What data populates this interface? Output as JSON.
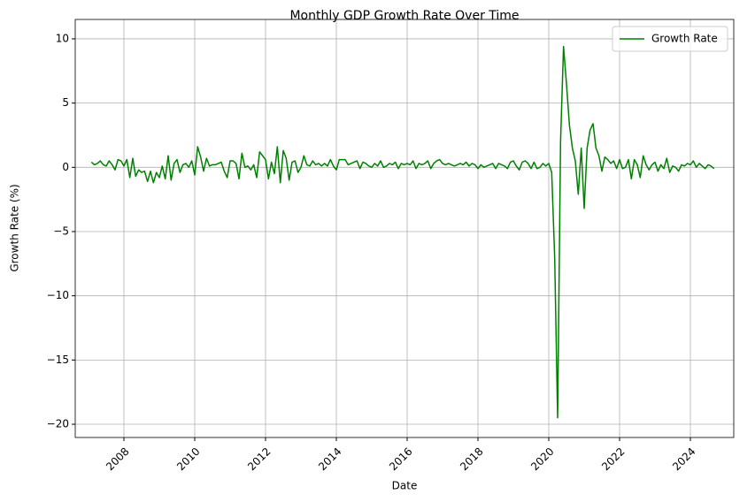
{
  "chart_data": {
    "type": "line",
    "title": "Monthly GDP Growth Rate Over Time",
    "x_label": "Date",
    "y_label": "Growth Rate (%)",
    "x": [
      2007.083,
      2007.167,
      2007.25,
      2007.333,
      2007.417,
      2007.5,
      2007.583,
      2007.667,
      2007.75,
      2007.833,
      2007.917,
      2008.0,
      2008.083,
      2008.167,
      2008.25,
      2008.333,
      2008.417,
      2008.5,
      2008.583,
      2008.667,
      2008.75,
      2008.833,
      2008.917,
      2009.0,
      2009.083,
      2009.167,
      2009.25,
      2009.333,
      2009.417,
      2009.5,
      2009.583,
      2009.667,
      2009.75,
      2009.833,
      2009.917,
      2010.0,
      2010.083,
      2010.167,
      2010.25,
      2010.333,
      2010.417,
      2010.5,
      2010.583,
      2010.667,
      2010.75,
      2010.833,
      2010.917,
      2011.0,
      2011.083,
      2011.167,
      2011.25,
      2011.333,
      2011.417,
      2011.5,
      2011.583,
      2011.667,
      2011.75,
      2011.833,
      2011.917,
      2012.0,
      2012.083,
      2012.167,
      2012.25,
      2012.333,
      2012.417,
      2012.5,
      2012.583,
      2012.667,
      2012.75,
      2012.833,
      2012.917,
      2013.0,
      2013.083,
      2013.167,
      2013.25,
      2013.333,
      2013.417,
      2013.5,
      2013.583,
      2013.667,
      2013.75,
      2013.833,
      2013.917,
      2014.0,
      2014.083,
      2014.167,
      2014.25,
      2014.333,
      2014.417,
      2014.5,
      2014.583,
      2014.667,
      2014.75,
      2014.833,
      2014.917,
      2015.0,
      2015.083,
      2015.167,
      2015.25,
      2015.333,
      2015.417,
      2015.5,
      2015.583,
      2015.667,
      2015.75,
      2015.833,
      2015.917,
      2016.0,
      2016.083,
      2016.167,
      2016.25,
      2016.333,
      2016.417,
      2016.5,
      2016.583,
      2016.667,
      2016.75,
      2016.833,
      2016.917,
      2017.0,
      2017.083,
      2017.167,
      2017.25,
      2017.333,
      2017.417,
      2017.5,
      2017.583,
      2017.667,
      2017.75,
      2017.833,
      2017.917,
      2018.0,
      2018.083,
      2018.167,
      2018.25,
      2018.333,
      2018.417,
      2018.5,
      2018.583,
      2018.667,
      2018.75,
      2018.833,
      2018.917,
      2019.0,
      2019.083,
      2019.167,
      2019.25,
      2019.333,
      2019.417,
      2019.5,
      2019.583,
      2019.667,
      2019.75,
      2019.833,
      2019.917,
      2020.0,
      2020.083,
      2020.167,
      2020.25,
      2020.333,
      2020.417,
      2020.5,
      2020.583,
      2020.667,
      2020.75,
      2020.833,
      2020.917,
      2021.0,
      2021.083,
      2021.167,
      2021.25,
      2021.333,
      2021.417,
      2021.5,
      2021.583,
      2021.667,
      2021.75,
      2021.833,
      2021.917,
      2022.0,
      2022.083,
      2022.167,
      2022.25,
      2022.333,
      2022.417,
      2022.5,
      2022.583,
      2022.667,
      2022.75,
      2022.833,
      2022.917,
      2023.0,
      2023.083,
      2023.167,
      2023.25,
      2023.333,
      2023.417,
      2023.5,
      2023.583,
      2023.667,
      2023.75,
      2023.833,
      2023.917,
      2024.0,
      2024.083,
      2024.167,
      2024.25,
      2024.333,
      2024.417,
      2024.5,
      2024.583,
      2024.667
    ],
    "series": [
      {
        "name": "Growth Rate",
        "color": "#008000",
        "values": [
          0.4,
          0.2,
          0.3,
          0.5,
          0.2,
          0.1,
          0.5,
          0.2,
          -0.2,
          0.6,
          0.5,
          0.1,
          0.6,
          -0.8,
          0.7,
          -0.7,
          -0.2,
          -0.4,
          -0.3,
          -1.1,
          -0.3,
          -1.2,
          -0.4,
          -0.8,
          0.1,
          -0.9,
          0.9,
          -1.0,
          0.3,
          0.6,
          -0.4,
          0.2,
          0.3,
          0.0,
          0.5,
          -0.6,
          1.6,
          0.8,
          -0.3,
          0.7,
          0.1,
          0.2,
          0.2,
          0.3,
          0.4,
          -0.3,
          -0.8,
          0.5,
          0.5,
          0.3,
          -0.9,
          1.1,
          0.0,
          0.1,
          -0.2,
          0.2,
          -0.8,
          1.2,
          0.9,
          0.6,
          -0.9,
          0.4,
          -0.5,
          1.6,
          -1.2,
          1.3,
          0.7,
          -1.0,
          0.4,
          0.5,
          -0.4,
          0.0,
          0.9,
          0.2,
          0.1,
          0.5,
          0.2,
          0.3,
          0.1,
          0.3,
          0.1,
          0.6,
          0.1,
          -0.2,
          0.6,
          0.6,
          0.6,
          0.2,
          0.3,
          0.4,
          0.5,
          -0.1,
          0.4,
          0.3,
          0.1,
          0.0,
          0.3,
          0.1,
          0.5,
          0.0,
          0.1,
          0.3,
          0.2,
          0.4,
          -0.1,
          0.3,
          0.2,
          0.3,
          0.2,
          0.5,
          -0.1,
          0.3,
          0.2,
          0.3,
          0.5,
          -0.1,
          0.3,
          0.5,
          0.6,
          0.3,
          0.2,
          0.3,
          0.2,
          0.1,
          0.2,
          0.3,
          0.2,
          0.4,
          0.1,
          0.3,
          0.2,
          -0.1,
          0.2,
          0.0,
          0.1,
          0.2,
          0.3,
          -0.1,
          0.3,
          0.2,
          0.1,
          -0.1,
          0.4,
          0.5,
          0.1,
          -0.2,
          0.4,
          0.5,
          0.3,
          -0.1,
          0.4,
          -0.1,
          0.0,
          0.3,
          0.1,
          0.3,
          -0.4,
          -7.0,
          -19.5,
          2.0,
          9.4,
          6.5,
          3.3,
          1.5,
          0.5,
          -2.1,
          1.5,
          -3.2,
          1.5,
          2.9,
          3.4,
          1.5,
          0.9,
          -0.3,
          0.8,
          0.6,
          0.3,
          0.5,
          -0.1,
          0.6,
          -0.1,
          0.0,
          0.6,
          -0.9,
          0.6,
          0.2,
          -0.8,
          0.9,
          0.2,
          -0.2,
          0.2,
          0.4,
          -0.3,
          0.2,
          -0.1,
          0.7,
          -0.4,
          0.1,
          0.0,
          -0.3,
          0.2,
          0.1,
          0.3,
          0.2,
          0.5,
          0.0,
          0.3,
          0.1,
          -0.1,
          0.2,
          0.1,
          -0.1
        ]
      }
    ],
    "xlim": [
      2006.625,
      2025.225
    ],
    "xticks": [
      2008,
      2010,
      2012,
      2014,
      2016,
      2018,
      2020,
      2022,
      2024
    ],
    "ylim": [
      -21.03,
      11.51
    ],
    "yticks": [
      {
        "value": -20,
        "label": "−20"
      },
      {
        "value": -15,
        "label": "−15"
      },
      {
        "value": -10,
        "label": "−10"
      },
      {
        "value": -5,
        "label": "−5"
      },
      0,
      5,
      10
    ],
    "grid": true,
    "legend": "upper right"
  }
}
